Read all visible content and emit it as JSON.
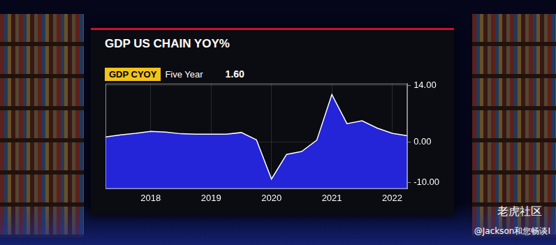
{
  "chart_data": {
    "type": "line",
    "title": "GDP US CHAIN YOY%",
    "categories": [
      null,
      null,
      null,
      "2018",
      null,
      null,
      null,
      "2019",
      null,
      null,
      null,
      "2020",
      null,
      null,
      null,
      "2021",
      null,
      null,
      null,
      "2022",
      null
    ],
    "series": [
      {
        "name": "GDP CYOY",
        "color": "#2424d8",
        "values": [
          1.3,
          1.8,
          2.2,
          2.7,
          2.5,
          2.1,
          2.0,
          2.0,
          2.0,
          2.4,
          0.6,
          -9.1,
          -3.0,
          -2.3,
          0.5,
          11.8,
          4.6,
          5.3,
          3.5,
          2.2,
          1.6
        ]
      }
    ],
    "ylim": [
      -11.5,
      14.5
    ],
    "yticks": [
      {
        "value": -10,
        "label": "-10.00"
      },
      {
        "value": 0,
        "label": "0.00"
      },
      {
        "value": 14,
        "label": "14.00"
      }
    ],
    "grid": true,
    "legend": "top-left"
  },
  "header": {
    "period": "Five Year",
    "last_value": {
      "value": 1.6,
      "label": "1.60"
    }
  },
  "watermark": [
    "老虎社区",
    "@Jackson和您畅谈I"
  ]
}
